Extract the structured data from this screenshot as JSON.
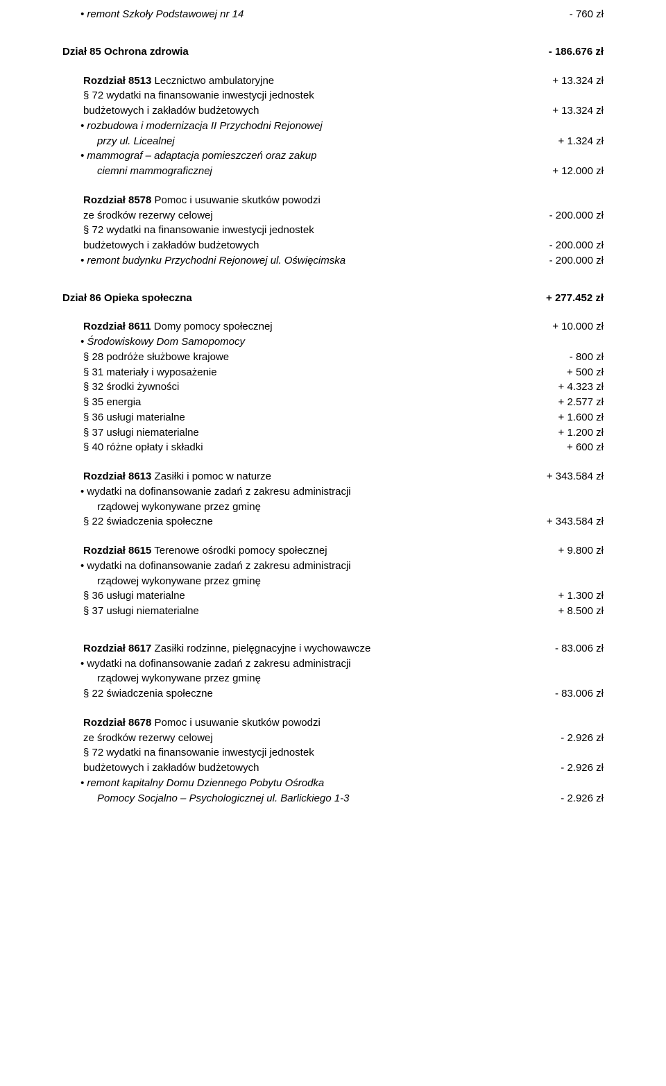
{
  "r1": {
    "label": "remont Szkoły Podstawowej nr 14",
    "amt": "- 760 zł"
  },
  "d85": {
    "title": "Dział 85 Ochrona zdrowia",
    "amt": "- 186.676 zł"
  },
  "r8513": {
    "title": "Rozdział 8513",
    "rest": " Lecznictwo ambulatoryjne",
    "amt": "+ 13.324 zł"
  },
  "r8513_p72a": {
    "l": "§ 72 wydatki na finansowanie inwestycji jednostek"
  },
  "r8513_p72b": {
    "l": "budżetowych  i zakładów budżetowych",
    "amt": "+ 13.324 zł"
  },
  "r8513_b1a": {
    "l": "rozbudowa i modernizacja II Przychodni Rejonowej"
  },
  "r8513_b1b": {
    "l": "przy ul. Licealnej",
    "amt": "+ 1.324 zł"
  },
  "r8513_b2a": {
    "l": "mammograf – adaptacja pomieszczeń oraz zakup"
  },
  "r8513_b2b": {
    "l": "ciemni mammograficznej",
    "amt": "+ 12.000 zł"
  },
  "r8578": {
    "title": "Rozdział 8578",
    "rest": " Pomoc i usuwanie skutków powodzi"
  },
  "r8578_a": {
    "l": "ze środków rezerwy celowej",
    "amt": "- 200.000 zł"
  },
  "r8578_p72a": {
    "l": "§ 72 wydatki na finansowanie inwestycji jednostek"
  },
  "r8578_p72b": {
    "l": "budżetowych  i zakładów budżetowych",
    "amt": "- 200.000 zł"
  },
  "r8578_b1": {
    "l": "remont budynku Przychodni Rejonowej ul. Oświęcimska",
    "amt": "- 200.000 zł"
  },
  "d86": {
    "title": "Dział 86 Opieka społeczna",
    "amt": "+ 277.452 zł"
  },
  "r8611": {
    "title": "Rozdział 8611",
    "rest": " Domy pomocy społecznej",
    "amt": "+ 10.000 zł"
  },
  "r8611_b1": {
    "l": "Środowiskowy Dom Samopomocy"
  },
  "r8611_p28": {
    "l": "§ 28 podróże służbowe krajowe",
    "amt": "- 800 zł"
  },
  "r8611_p31": {
    "l": "§ 31 materiały i wyposażenie",
    "amt": "+ 500 zł"
  },
  "r8611_p32": {
    "l": "§ 32 środki żywności",
    "amt": "+ 4.323 zł"
  },
  "r8611_p35": {
    "l": "§ 35 energia",
    "amt": "+ 2.577 zł"
  },
  "r8611_p36": {
    "l": "§ 36 usługi materialne",
    "amt": "+ 1.600 zł"
  },
  "r8611_p37": {
    "l": "§ 37 usługi niematerialne",
    "amt": "+ 1.200 zł"
  },
  "r8611_p40": {
    "l": "§ 40 różne opłaty i składki",
    "amt": "+ 600 zł"
  },
  "r8613": {
    "title": "Rozdział 8613",
    "rest": " Zasiłki i pomoc w naturze",
    "amt": "+ 343.584 zł"
  },
  "r8613_b1a": {
    "l": "wydatki na dofinansowanie zadań z zakresu administracji"
  },
  "r8613_b1b": {
    "l": "rządowej wykonywane przez gminę"
  },
  "r8613_p22": {
    "l": "§ 22 świadczenia społeczne",
    "amt": "+ 343.584 zł"
  },
  "r8615": {
    "title": "Rozdział 8615",
    "rest": " Terenowe ośrodki pomocy społecznej",
    "amt": "+ 9.800 zł"
  },
  "r8615_b1a": {
    "l": "wydatki na dofinansowanie zadań z zakresu administracji"
  },
  "r8615_b1b": {
    "l": "rządowej wykonywane przez gminę"
  },
  "r8615_p36": {
    "l": "§ 36 usługi materialne",
    "amt": "+ 1.300 zł"
  },
  "r8615_p37": {
    "l": "§ 37 usługi niematerialne",
    "amt": "+ 8.500 zł"
  },
  "r8617": {
    "title": "Rozdział 8617",
    "rest": " Zasiłki rodzinne, pielęgnacyjne i wychowawcze",
    "amt": "- 83.006 zł"
  },
  "r8617_b1a": {
    "l": "wydatki na dofinansowanie zadań z zakresu administracji"
  },
  "r8617_b1b": {
    "l": "rządowej wykonywane przez gminę"
  },
  "r8617_p22": {
    "l": "§ 22 świadczenia społeczne",
    "amt": "- 83.006 zł"
  },
  "r8678": {
    "title": "Rozdział 8678",
    "rest": " Pomoc i usuwanie skutków powodzi"
  },
  "r8678_a": {
    "l": "ze środków rezerwy celowej",
    "amt": "- 2.926 zł"
  },
  "r8678_p72a": {
    "l": "§ 72 wydatki na finansowanie inwestycji jednostek"
  },
  "r8678_p72b": {
    "l": "budżetowych  i zakładów budżetowych",
    "amt": "- 2.926 zł"
  },
  "r8678_b1a": {
    "l": "remont kapitalny Domu Dziennego Pobytu Ośrodka"
  },
  "r8678_b1b": {
    "l": "Pomocy Socjalno – Psychologicznej ul. Barlickiego 1-3",
    "amt": "- 2.926 zł"
  }
}
